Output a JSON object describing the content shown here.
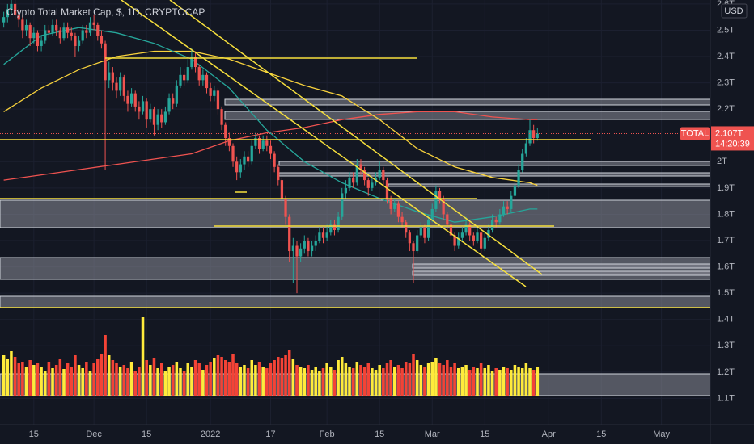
{
  "chart_data": {
    "type": "candlestick",
    "title": "Crypto Total Market Cap, $, 1D, CRYPTOCAP",
    "currency": "USD",
    "symbol": "TOTAL",
    "last_price": {
      "value": 2.107,
      "label": "2.107T"
    },
    "countdown": "14:20:39",
    "up_color": "#26a69a",
    "down_color": "#ef5350",
    "x": [
      "2021-11-07",
      "2021-11-08",
      "2021-11-09",
      "2021-11-10",
      "2021-11-11",
      "2021-11-12",
      "2021-11-13",
      "2021-11-14",
      "2021-11-15",
      "2021-11-16",
      "2021-11-17",
      "2021-11-18",
      "2021-11-19",
      "2021-11-20",
      "2021-11-21",
      "2021-11-22",
      "2021-11-23",
      "2021-11-24",
      "2021-11-25",
      "2021-11-26",
      "2021-11-27",
      "2021-11-28",
      "2021-11-29",
      "2021-11-30",
      "2021-12-01",
      "2021-12-02",
      "2021-12-03",
      "2021-12-04",
      "2021-12-05",
      "2021-12-06",
      "2021-12-07",
      "2021-12-08",
      "2021-12-09",
      "2021-12-10",
      "2021-12-11",
      "2021-12-12",
      "2021-12-13",
      "2021-12-14",
      "2021-12-15",
      "2021-12-16",
      "2021-12-17",
      "2021-12-18",
      "2021-12-19",
      "2021-12-20",
      "2021-12-21",
      "2021-12-22",
      "2021-12-23",
      "2021-12-24",
      "2021-12-25",
      "2021-12-26",
      "2021-12-27",
      "2021-12-28",
      "2021-12-29",
      "2021-12-30",
      "2021-12-31",
      "2022-01-01",
      "2022-01-02",
      "2022-01-03",
      "2022-01-04",
      "2022-01-05",
      "2022-01-06",
      "2022-01-07",
      "2022-01-08",
      "2022-01-09",
      "2022-01-10",
      "2022-01-11",
      "2022-01-12",
      "2022-01-13",
      "2022-01-14",
      "2022-01-15",
      "2022-01-16",
      "2022-01-17",
      "2022-01-18",
      "2022-01-19",
      "2022-01-20",
      "2022-01-21",
      "2022-01-22",
      "2022-01-23",
      "2022-01-24",
      "2022-01-25",
      "2022-01-26",
      "2022-01-27",
      "2022-01-28",
      "2022-01-29",
      "2022-01-30",
      "2022-01-31",
      "2022-02-01",
      "2022-02-02",
      "2022-02-03",
      "2022-02-04",
      "2022-02-05",
      "2022-02-06",
      "2022-02-07",
      "2022-02-08",
      "2022-02-09",
      "2022-02-10",
      "2022-02-11",
      "2022-02-12",
      "2022-02-13",
      "2022-02-14",
      "2022-02-15",
      "2022-02-16",
      "2022-02-17",
      "2022-02-18",
      "2022-02-19",
      "2022-02-20",
      "2022-02-21",
      "2022-02-22",
      "2022-02-23",
      "2022-02-24",
      "2022-02-25",
      "2022-02-26",
      "2022-02-27",
      "2022-02-28",
      "2022-03-01",
      "2022-03-02",
      "2022-03-03",
      "2022-03-04",
      "2022-03-05",
      "2022-03-06",
      "2022-03-07",
      "2022-03-08",
      "2022-03-09",
      "2022-03-10",
      "2022-03-11",
      "2022-03-12",
      "2022-03-13",
      "2022-03-14",
      "2022-03-15",
      "2022-03-16",
      "2022-03-17",
      "2022-03-18",
      "2022-03-19",
      "2022-03-20",
      "2022-03-21",
      "2022-03-22",
      "2022-03-23",
      "2022-03-24",
      "2022-03-25",
      "2022-03-26",
      "2022-03-27",
      "2022-03-28",
      "2022-03-29"
    ],
    "open": [
      2.53,
      2.55,
      2.58,
      2.6,
      2.56,
      2.54,
      2.5,
      2.52,
      2.47,
      2.49,
      2.44,
      2.46,
      2.5,
      2.49,
      2.52,
      2.5,
      2.47,
      2.51,
      2.49,
      2.48,
      2.44,
      2.46,
      2.5,
      2.49,
      2.53,
      2.52,
      2.48,
      2.45,
      2.31,
      2.34,
      2.3,
      2.27,
      2.32,
      2.25,
      2.22,
      2.26,
      2.21,
      2.19,
      2.23,
      2.16,
      2.2,
      2.14,
      2.18,
      2.15,
      2.19,
      2.24,
      2.22,
      2.29,
      2.33,
      2.31,
      2.36,
      2.4,
      2.36,
      2.31,
      2.33,
      2.28,
      2.25,
      2.27,
      2.2,
      2.14,
      2.09,
      2.06,
      2.0,
      1.96,
      1.99,
      2.02,
      2.0,
      2.06,
      2.09,
      2.05,
      2.08,
      2.06,
      2.03,
      1.98,
      1.93,
      1.86,
      1.79,
      1.66,
      1.68,
      1.64,
      1.67,
      1.7,
      1.66,
      1.68,
      1.7,
      1.73,
      1.71,
      1.73,
      1.76,
      1.74,
      1.79,
      1.88,
      1.9,
      1.94,
      1.92,
      1.99,
      1.97,
      1.93,
      1.9,
      1.92,
      1.94,
      1.97,
      1.93,
      1.86,
      1.82,
      1.84,
      1.79,
      1.77,
      1.73,
      1.69,
      1.66,
      1.72,
      1.75,
      1.71,
      1.78,
      1.82,
      1.89,
      1.86,
      1.8,
      1.76,
      1.72,
      1.68,
      1.71,
      1.73,
      1.76,
      1.72,
      1.7,
      1.73,
      1.67,
      1.71,
      1.74,
      1.78,
      1.77,
      1.8,
      1.83,
      1.82,
      1.87,
      1.91,
      1.97,
      2.03,
      2.07,
      2.12,
      2.09
    ],
    "high": [
      2.57,
      2.6,
      2.63,
      2.62,
      2.58,
      2.56,
      2.54,
      2.53,
      2.51,
      2.5,
      2.48,
      2.52,
      2.52,
      2.54,
      2.54,
      2.51,
      2.53,
      2.53,
      2.51,
      2.49,
      2.48,
      2.52,
      2.52,
      2.55,
      2.56,
      2.53,
      2.5,
      2.46,
      2.38,
      2.36,
      2.32,
      2.34,
      2.33,
      2.27,
      2.28,
      2.27,
      2.23,
      2.25,
      2.24,
      2.22,
      2.21,
      2.2,
      2.2,
      2.21,
      2.26,
      2.26,
      2.31,
      2.36,
      2.35,
      2.39,
      2.43,
      2.42,
      2.37,
      2.35,
      2.34,
      2.3,
      2.29,
      2.28,
      2.21,
      2.15,
      2.11,
      2.07,
      2.02,
      2.01,
      2.04,
      2.04,
      2.08,
      2.11,
      2.1,
      2.1,
      2.1,
      2.08,
      2.04,
      1.99,
      1.94,
      1.87,
      1.8,
      1.71,
      1.7,
      1.69,
      1.72,
      1.71,
      1.7,
      1.72,
      1.75,
      1.75,
      1.76,
      1.78,
      1.78,
      1.81,
      1.9,
      1.93,
      1.96,
      1.96,
      2.01,
      2.01,
      1.98,
      1.94,
      1.94,
      1.96,
      2.0,
      1.98,
      1.94,
      1.87,
      1.86,
      1.85,
      1.81,
      1.78,
      1.74,
      1.7,
      1.74,
      1.77,
      1.76,
      1.8,
      1.84,
      1.91,
      1.9,
      1.87,
      1.81,
      1.77,
      1.73,
      1.73,
      1.75,
      1.79,
      1.77,
      1.73,
      1.75,
      1.74,
      1.73,
      1.76,
      1.8,
      1.79,
      1.82,
      1.85,
      1.85,
      1.89,
      1.93,
      1.99,
      2.05,
      2.09,
      2.16,
      2.14,
      2.13
    ],
    "low": [
      2.51,
      2.53,
      2.56,
      2.54,
      2.51,
      2.47,
      2.48,
      2.44,
      2.45,
      2.42,
      2.42,
      2.45,
      2.47,
      2.48,
      2.48,
      2.45,
      2.46,
      2.47,
      2.46,
      2.4,
      2.42,
      2.45,
      2.47,
      2.48,
      2.5,
      2.46,
      2.43,
      1.97,
      2.28,
      2.27,
      2.24,
      2.25,
      2.23,
      2.19,
      2.21,
      2.19,
      2.16,
      2.18,
      2.13,
      2.15,
      2.1,
      2.12,
      2.13,
      2.14,
      2.18,
      2.2,
      2.21,
      2.28,
      2.29,
      2.3,
      2.35,
      2.34,
      2.29,
      2.29,
      2.26,
      2.23,
      2.23,
      2.18,
      2.12,
      2.06,
      2.04,
      1.98,
      1.93,
      1.94,
      1.97,
      1.98,
      1.99,
      2.05,
      2.03,
      2.04,
      2.04,
      2.01,
      1.96,
      1.91,
      1.84,
      1.76,
      1.62,
      1.54,
      1.5,
      1.62,
      1.65,
      1.64,
      1.64,
      1.66,
      1.69,
      1.69,
      1.7,
      1.72,
      1.72,
      1.73,
      1.78,
      1.86,
      1.89,
      1.9,
      1.91,
      1.95,
      1.91,
      1.87,
      1.89,
      1.91,
      1.93,
      1.91,
      1.84,
      1.8,
      1.81,
      1.77,
      1.75,
      1.71,
      1.66,
      1.54,
      1.65,
      1.71,
      1.69,
      1.7,
      1.77,
      1.81,
      1.84,
      1.78,
      1.74,
      1.7,
      1.66,
      1.67,
      1.7,
      1.72,
      1.7,
      1.68,
      1.69,
      1.65,
      1.66,
      1.7,
      1.73,
      1.75,
      1.76,
      1.79,
      1.8,
      1.81,
      1.86,
      1.9,
      1.96,
      2.02,
      2.06,
      2.07,
      2.08
    ],
    "close": [
      2.55,
      2.58,
      2.6,
      2.56,
      2.54,
      2.5,
      2.52,
      2.47,
      2.49,
      2.44,
      2.46,
      2.5,
      2.49,
      2.52,
      2.5,
      2.47,
      2.51,
      2.49,
      2.48,
      2.44,
      2.46,
      2.5,
      2.49,
      2.53,
      2.52,
      2.48,
      2.45,
      2.31,
      2.34,
      2.3,
      2.27,
      2.32,
      2.25,
      2.22,
      2.26,
      2.21,
      2.19,
      2.23,
      2.16,
      2.2,
      2.14,
      2.18,
      2.15,
      2.19,
      2.24,
      2.22,
      2.29,
      2.33,
      2.31,
      2.36,
      2.4,
      2.36,
      2.31,
      2.33,
      2.28,
      2.25,
      2.27,
      2.2,
      2.14,
      2.09,
      2.06,
      2.0,
      1.96,
      1.99,
      2.02,
      2.0,
      2.06,
      2.09,
      2.05,
      2.08,
      2.06,
      2.03,
      1.98,
      1.93,
      1.86,
      1.79,
      1.66,
      1.68,
      1.64,
      1.67,
      1.7,
      1.66,
      1.68,
      1.7,
      1.73,
      1.71,
      1.73,
      1.76,
      1.74,
      1.79,
      1.88,
      1.9,
      1.94,
      1.92,
      1.99,
      1.97,
      1.93,
      1.9,
      1.92,
      1.94,
      1.97,
      1.93,
      1.86,
      1.82,
      1.84,
      1.79,
      1.77,
      1.73,
      1.69,
      1.66,
      1.72,
      1.75,
      1.71,
      1.78,
      1.82,
      1.89,
      1.86,
      1.8,
      1.76,
      1.72,
      1.68,
      1.71,
      1.73,
      1.76,
      1.72,
      1.7,
      1.73,
      1.67,
      1.71,
      1.74,
      1.78,
      1.77,
      1.8,
      1.83,
      1.82,
      1.87,
      1.91,
      1.97,
      2.03,
      2.07,
      2.12,
      2.09,
      2.107
    ],
    "volume": {
      "up_color": "#ffeb3b",
      "down_color": "#f44336",
      "values": [
        50,
        45,
        55,
        48,
        40,
        42,
        35,
        44,
        38,
        40,
        36,
        30,
        42,
        34,
        38,
        45,
        33,
        40,
        36,
        50,
        38,
        34,
        42,
        30,
        40,
        45,
        52,
        75,
        50,
        44,
        40,
        36,
        38,
        34,
        42,
        30,
        36,
        97,
        44,
        38,
        46,
        34,
        40,
        30,
        36,
        38,
        42,
        34,
        30,
        40,
        36,
        44,
        40,
        32,
        38,
        42,
        46,
        50,
        48,
        44,
        42,
        52,
        40,
        36,
        38,
        34,
        44,
        38,
        42,
        36,
        34,
        40,
        44,
        48,
        46,
        50,
        56,
        45,
        38,
        36,
        34,
        38,
        32,
        36,
        30,
        34,
        40,
        36,
        32,
        44,
        48,
        40,
        36,
        34,
        42,
        38,
        36,
        40,
        34,
        32,
        38,
        34,
        40,
        44,
        36,
        38,
        34,
        42,
        40,
        52,
        44,
        38,
        36,
        40,
        42,
        46,
        40,
        38,
        44,
        36,
        40,
        34,
        36,
        38,
        32,
        36,
        34,
        40,
        34,
        38,
        30,
        34,
        32,
        36,
        34,
        32,
        38,
        36,
        34,
        40,
        34,
        32,
        36
      ]
    },
    "series": [
      {
        "color": "#ef5350",
        "x": [
          "2021-11-07",
          "2021-11-17",
          "2021-11-27",
          "2021-12-07",
          "2021-12-17",
          "2021-12-27",
          "2022-01-06",
          "2022-01-16",
          "2022-01-26",
          "2022-02-05",
          "2022-02-15",
          "2022-02-25",
          "2022-03-07",
          "2022-03-17",
          "2022-03-27",
          "2022-03-29"
        ],
        "values": [
          1.93,
          1.95,
          1.97,
          1.99,
          2.01,
          2.03,
          2.08,
          2.11,
          2.13,
          2.16,
          2.18,
          2.19,
          2.19,
          2.17,
          2.16,
          2.16
        ]
      },
      {
        "color": "#f7d13c",
        "x": [
          "2021-11-07",
          "2021-11-17",
          "2021-11-27",
          "2021-12-07",
          "2021-12-17",
          "2021-12-27",
          "2022-01-06",
          "2022-01-16",
          "2022-01-26",
          "2022-02-05",
          "2022-02-15",
          "2022-02-25",
          "2022-03-07",
          "2022-03-17",
          "2022-03-27",
          "2022-03-29"
        ],
        "values": [
          2.19,
          2.28,
          2.35,
          2.4,
          2.42,
          2.42,
          2.39,
          2.34,
          2.29,
          2.25,
          2.16,
          2.05,
          1.98,
          1.94,
          1.92,
          1.91
        ]
      },
      {
        "color": "#26a69a",
        "x": [
          "2021-11-07",
          "2021-11-17",
          "2021-11-27",
          "2021-12-07",
          "2021-12-17",
          "2021-12-27",
          "2022-01-06",
          "2022-01-16",
          "2022-01-26",
          "2022-02-05",
          "2022-02-15",
          "2022-02-25",
          "2022-03-07",
          "2022-03-17",
          "2022-03-27",
          "2022-03-29"
        ],
        "values": [
          2.37,
          2.48,
          2.51,
          2.49,
          2.45,
          2.39,
          2.28,
          2.12,
          2.0,
          1.92,
          1.86,
          1.81,
          1.77,
          1.79,
          1.82,
          1.82
        ]
      }
    ],
    "ylim": [
      1.0,
      2.615
    ],
    "yticks": [
      {
        "value": 2.6,
        "label": "2.6T"
      },
      {
        "value": 2.5,
        "label": "2.5T"
      },
      {
        "value": 2.4,
        "label": "2.4T"
      },
      {
        "value": 2.3,
        "label": "2.3T"
      },
      {
        "value": 2.2,
        "label": "2.2T"
      },
      {
        "value": 2,
        "label": "2T"
      },
      {
        "value": 1.9,
        "label": "1.9T"
      },
      {
        "value": 1.8,
        "label": "1.8T"
      },
      {
        "value": 1.7,
        "label": "1.7T"
      },
      {
        "value": 1.6,
        "label": "1.6T"
      },
      {
        "value": 1.5,
        "label": "1.5T"
      },
      {
        "value": 1.4,
        "label": "1.4T"
      },
      {
        "value": 1.3,
        "label": "1.3T"
      },
      {
        "value": 1.2,
        "label": "1.2T"
      },
      {
        "value": 1.1,
        "label": "1.1T"
      }
    ],
    "xlim": [
      "2021-11-06",
      "2022-05-14"
    ],
    "xticks": [
      {
        "value": "2021-11-15",
        "label": "15"
      },
      {
        "value": "2021-12-01",
        "label": "Dec"
      },
      {
        "value": "2021-12-15",
        "label": "15"
      },
      {
        "value": "2022-01-01",
        "label": "2022"
      },
      {
        "value": "2022-01-17",
        "label": "17"
      },
      {
        "value": "2022-02-01",
        "label": "Feb"
      },
      {
        "value": "2022-02-15",
        "label": "15"
      },
      {
        "value": "2022-03-01",
        "label": "Mar"
      },
      {
        "value": "2022-03-15",
        "label": "15"
      },
      {
        "value": "2022-04-01",
        "label": "Apr"
      },
      {
        "value": "2022-04-15",
        "label": "15"
      },
      {
        "value": "2022-05-01",
        "label": "May"
      }
    ],
    "grid": true
  }
}
